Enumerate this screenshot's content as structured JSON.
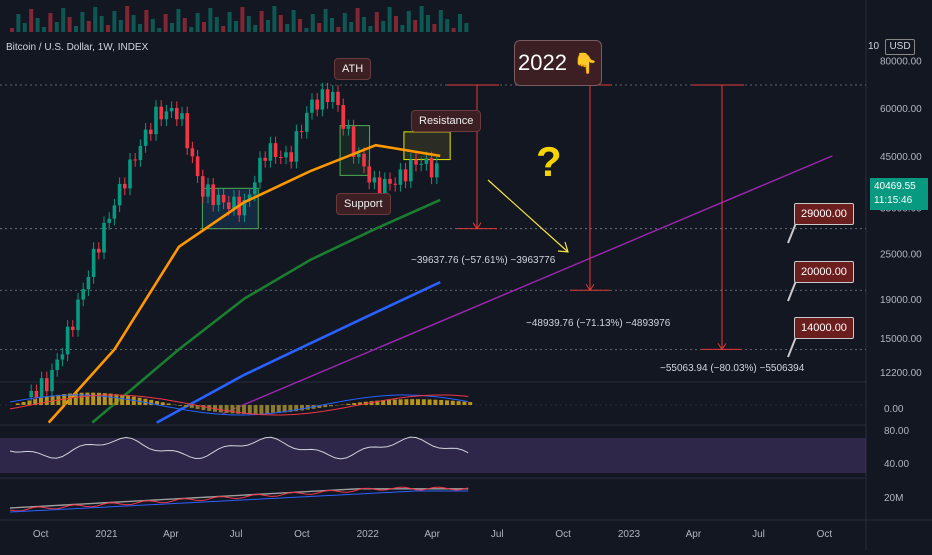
{
  "header": {
    "title": "Bitcoin / U.S. Dollar, 1W, INDEX",
    "scale_prefix": "10",
    "currency": "USD"
  },
  "price_box": {
    "price": "40469.55",
    "time": "11:15:46",
    "color": "#089981"
  },
  "annotations": {
    "year_label": "2022",
    "year_emoji": "👇",
    "question": "?",
    "ath": "ATH",
    "support": "Support",
    "resistance": "Resistance"
  },
  "targets": [
    "29000.00",
    "20000.00",
    "14000.00"
  ],
  "measures": [
    "−39637.76 (−57.61%) −3963776",
    "−48939.76 (−71.13%) −4893976",
    "−55063.94 (−80.03%) −5506394"
  ],
  "colors": {
    "up": "#089981",
    "down": "#f23645",
    "ma_orange": "#ff9800",
    "ma_green": "#1b7d2f",
    "ma_blue": "#2962ff",
    "trendline": "#9c27b0",
    "target": "#6b1e1e",
    "measure_line": "#e53935",
    "arrow": "#f5e642"
  },
  "chart_data": {
    "type": "candlestick",
    "timeframe": "1W",
    "symbol": "Bitcoin / U.S. Dollar",
    "x_ticks": [
      "Oct",
      "2021",
      "Apr",
      "Jul",
      "Oct",
      "2022",
      "Apr",
      "Jul",
      "Oct",
      "2023",
      "Apr",
      "Jul",
      "Oct"
    ],
    "y_ticks": [
      80000,
      60000,
      45000,
      33000,
      25000,
      19000,
      15000,
      12200
    ],
    "y_scale": "log",
    "ylim": [
      11500,
      95000
    ],
    "ath_value": 69000,
    "resistance_zone": [
      44000,
      52000
    ],
    "support_zone": [
      29000,
      37000
    ],
    "price_path": [
      [
        "2020-09",
        10500
      ],
      [
        "2020-10",
        11500
      ],
      [
        "2020-11",
        16000
      ],
      [
        "2020-12",
        24000
      ],
      [
        "2021-01",
        34000
      ],
      [
        "2021-02",
        46000
      ],
      [
        "2021-03",
        58000
      ],
      [
        "2021-04",
        59000
      ],
      [
        "2021-05",
        37000
      ],
      [
        "2021-06",
        34000
      ],
      [
        "2021-07",
        33000
      ],
      [
        "2021-08",
        47000
      ],
      [
        "2021-09",
        44000
      ],
      [
        "2021-10",
        61000
      ],
      [
        "2021-11",
        66000
      ],
      [
        "2021-12",
        47000
      ],
      [
        "2022-01",
        37000
      ],
      [
        "2022-02",
        39000
      ],
      [
        "2022-03",
        44000
      ],
      [
        "2022-04",
        40469
      ]
    ],
    "ma_series": [
      {
        "name": "",
        "color": "#ff9800",
        "points": [
          [
            "2020-10",
            9000
          ],
          [
            "2021-01",
            14000
          ],
          [
            "2021-04",
            26000
          ],
          [
            "2021-07",
            34000
          ],
          [
            "2021-10",
            41000
          ],
          [
            "2022-01",
            48000
          ],
          [
            "2022-04",
            45000
          ]
        ]
      },
      {
        "name": "",
        "color": "#1b7d2f",
        "points": [
          [
            "2020-12",
            9000
          ],
          [
            "2021-04",
            14000
          ],
          [
            "2021-07",
            19000
          ],
          [
            "2021-10",
            24000
          ],
          [
            "2022-01",
            29000
          ],
          [
            "2022-04",
            34500
          ]
        ]
      },
      {
        "name": "",
        "color": "#2962ff",
        "points": [
          [
            "2021-03",
            9000
          ],
          [
            "2021-07",
            12000
          ],
          [
            "2021-10",
            14500
          ],
          [
            "2022-01",
            17500
          ],
          [
            "2022-04",
            21000
          ]
        ]
      }
    ],
    "trendline": [
      [
        "2021-06",
        9500
      ],
      [
        "2023-10",
        45000
      ]
    ],
    "macd_ticks": [
      "0.00"
    ],
    "rsi_ticks": [
      "80.00",
      "40.00"
    ],
    "volume_ticks": [
      "20M"
    ]
  }
}
